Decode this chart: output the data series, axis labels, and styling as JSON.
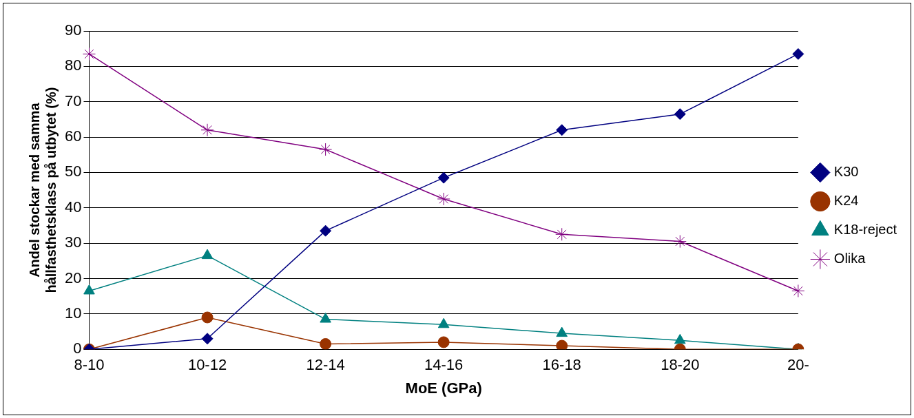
{
  "chart_data": {
    "type": "line",
    "xlabel": "MoE (GPa)",
    "ylabel": "Andel stockar med samma hållfasthetsklass på utbytet (%)",
    "categories": [
      "8-10",
      "10-12",
      "12-14",
      "14-16",
      "16-18",
      "18-20",
      "20-"
    ],
    "ylim": [
      0,
      90
    ],
    "yticks": [
      0,
      10,
      20,
      30,
      40,
      50,
      60,
      70,
      80,
      90
    ],
    "grid": "y",
    "legend": "right",
    "series": [
      {
        "name": "K30",
        "color": "#000080",
        "marker": "diamond",
        "values": [
          0,
          3,
          33.5,
          48.5,
          62,
          66.5,
          83.5
        ]
      },
      {
        "name": "K24",
        "color": "#993300",
        "marker": "circle",
        "values": [
          0,
          9,
          1.5,
          2,
          1,
          0,
          0
        ]
      },
      {
        "name": "K18-reject",
        "color": "#008080",
        "marker": "triangle",
        "values": [
          16.5,
          26.5,
          8.5,
          7,
          4.5,
          2.5,
          0
        ]
      },
      {
        "name": "Olika",
        "color": "#800080",
        "marker": "cross",
        "values": [
          83.5,
          62,
          56.5,
          42.5,
          32.5,
          30.5,
          16.5
        ]
      }
    ]
  }
}
